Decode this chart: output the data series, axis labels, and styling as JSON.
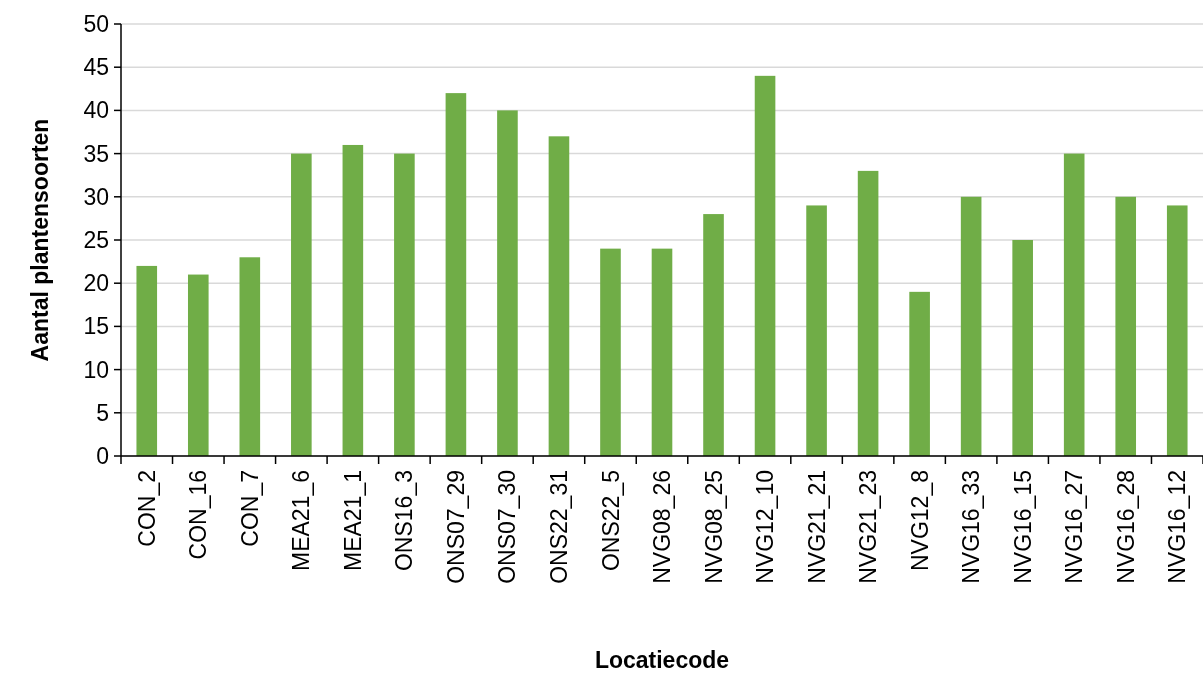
{
  "chart_data": {
    "type": "bar",
    "xlabel": "Locatiecode",
    "ylabel": "Aantal plantensoorten",
    "categories": [
      "CON_2",
      "CON_16",
      "CON_7",
      "MEA21_6",
      "MEA21_1",
      "ONS16_3",
      "ONS07_29",
      "ONS07_30",
      "ONS22_31",
      "ONS22_5",
      "NVG08_26",
      "NVG08_25",
      "NVG12_10",
      "NVG21_21",
      "NVG21_23",
      "NVG12_8",
      "NVG16_33",
      "NVG16_15",
      "NVG16_27",
      "NVG16_28",
      "NVG16_12"
    ],
    "values": [
      22,
      21,
      23,
      35,
      36,
      35,
      42,
      40,
      37,
      24,
      24,
      28,
      44,
      29,
      33,
      19,
      30,
      25,
      35,
      30,
      29
    ],
    "color": "#70ad47",
    "ylim": [
      0,
      50
    ],
    "yticks": [
      0,
      5,
      10,
      15,
      20,
      25,
      30,
      35,
      40,
      45,
      50
    ],
    "grid": "y"
  }
}
